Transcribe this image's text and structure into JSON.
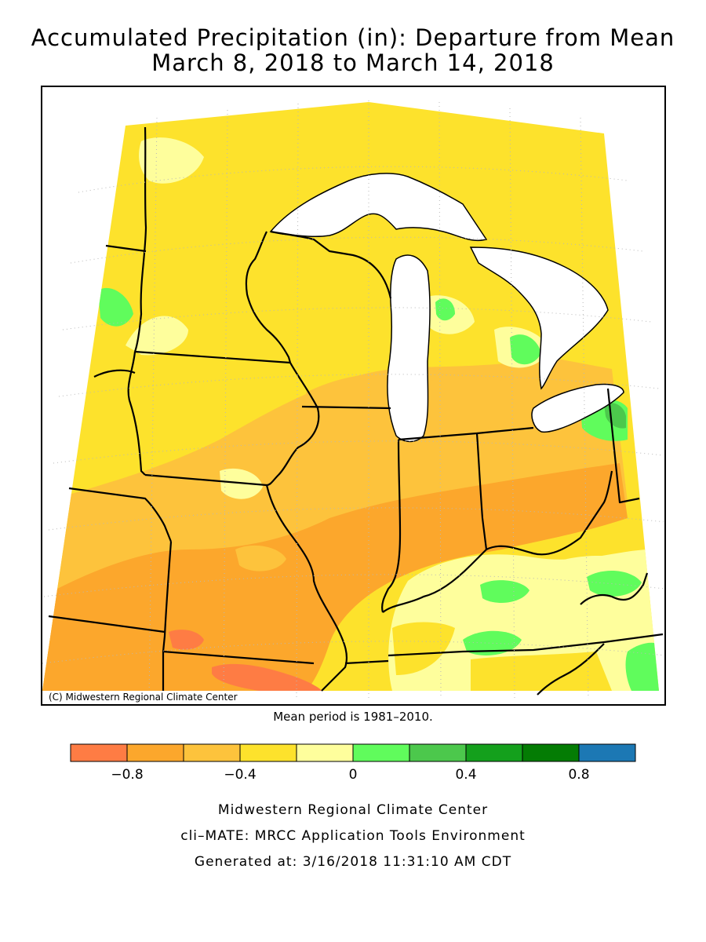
{
  "title_line1": "Accumulated Precipitation (in): Departure from Mean",
  "title_line2": "March 8, 2018 to March 14, 2018",
  "credit": "(C) Midwestern Regional Climate Center",
  "mean_period": "Mean period is 1981–2010.",
  "legend": {
    "colors": [
      "#fe7c44",
      "#fca72c",
      "#fdc33c",
      "#fde22c",
      "#fefe9c",
      "#60fc5c",
      "#4cc84c",
      "#14a01c",
      "#047c04",
      "#1c78b4"
    ],
    "bins": [
      -1.0,
      -0.8,
      -0.6,
      -0.4,
      -0.2,
      0,
      0.2,
      0.4,
      0.6,
      0.8,
      1.0
    ],
    "tick_labels": [
      "−0.8",
      "−0.4",
      "0",
      "0.4",
      "0.8"
    ]
  },
  "footer": {
    "line1": "Midwestern Regional Climate Center",
    "line2": "cli–MATE: MRCC Application Tools Environment",
    "line3": "Generated at: 3/16/2018 11:31:10 AM CDT"
  }
}
